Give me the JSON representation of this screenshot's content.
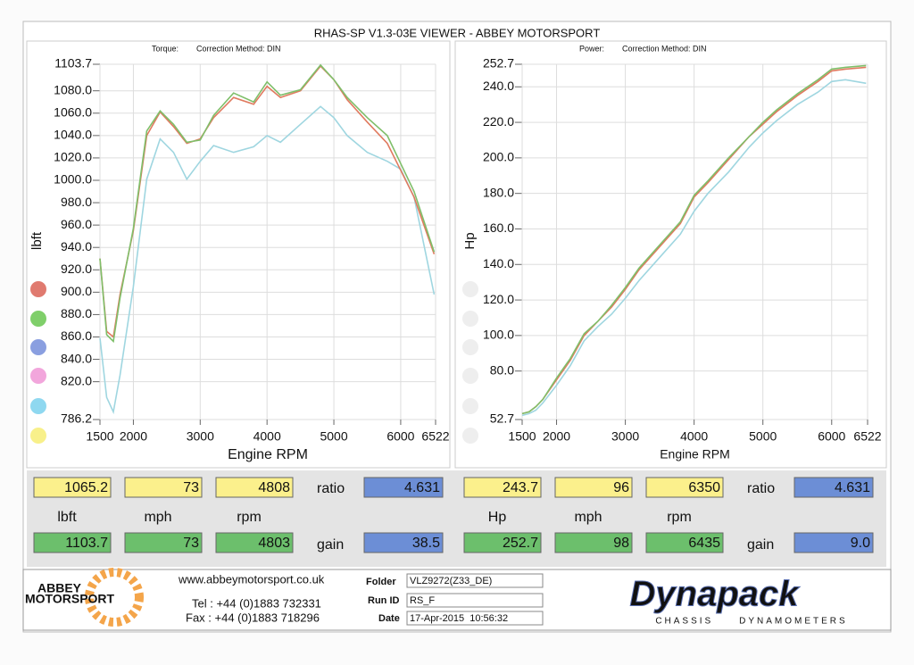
{
  "header": {
    "title": "RHAS-SP V1.3-03E VIEWER - ABBEY MOTORSPORT"
  },
  "chart_data": [
    {
      "type": "line",
      "subtitle": "Torque:",
      "method": "Correction Method: DIN",
      "xlabel": "Engine RPM",
      "ylabel": "lbft",
      "xlim": [
        1500,
        6522
      ],
      "xticks": [
        1500,
        2000,
        3000,
        4000,
        5000,
        6000,
        6522
      ],
      "ylim": [
        786.2,
        1103.7
      ],
      "yticks": [
        786.2,
        {
          "value": 820,
          "label": "820.0"
        },
        {
          "value": 840,
          "label": "840.0"
        },
        {
          "value": 860,
          "label": "860.0"
        },
        {
          "value": 880,
          "label": "880.0"
        },
        {
          "value": 900,
          "label": "900.0"
        },
        {
          "value": 920,
          "label": "920.0"
        },
        {
          "value": 940,
          "label": "940.0"
        },
        {
          "value": 960,
          "label": "960.0"
        },
        {
          "value": 980,
          "label": "980.0"
        },
        {
          "value": 1000,
          "label": "1000.0"
        },
        {
          "value": 1020,
          "label": "1020.0"
        },
        {
          "value": 1040,
          "label": "1040.0"
        },
        {
          "value": 1060,
          "label": "1060.0"
        },
        {
          "value": 1080,
          "label": "1080.0"
        },
        1103.7
      ],
      "grid": true,
      "x": [
        1500,
        1600,
        1700,
        1800,
        2000,
        2200,
        2400,
        2600,
        2800,
        3000,
        3200,
        3500,
        3800,
        4000,
        4200,
        4500,
        4800,
        5000,
        5200,
        5500,
        5800,
        6000,
        6200,
        6500
      ],
      "series": [
        {
          "color": "#9fd6e0",
          "values": [
            859,
            806,
            793,
            826,
            905,
            1001,
            1037,
            1025,
            1001,
            1017,
            1031,
            1025,
            1030,
            1040,
            1034,
            1050,
            1066,
            1056,
            1040,
            1025,
            1017,
            1010,
            985,
            898
          ]
        },
        {
          "color": "#e07a5f",
          "values": [
            930,
            865,
            860,
            898,
            955,
            1040,
            1061,
            1048,
            1033,
            1037,
            1056,
            1074,
            1068,
            1084,
            1074,
            1080,
            1102,
            1090,
            1072,
            1052,
            1033,
            1009,
            985,
            934
          ]
        },
        {
          "color": "#7fbf6a",
          "values": [
            930,
            862,
            856,
            895,
            957,
            1044,
            1062,
            1050,
            1034,
            1036,
            1058,
            1078,
            1070,
            1088,
            1076,
            1081,
            1103,
            1090,
            1074,
            1056,
            1040,
            1015,
            990,
            936
          ]
        }
      ]
    },
    {
      "type": "line",
      "subtitle": "Power:",
      "method": "Correction Method: DIN",
      "xlabel": "Engine RPM",
      "ylabel": "Hp",
      "xlim": [
        1500,
        6522
      ],
      "xticks": [
        1500,
        2000,
        3000,
        4000,
        5000,
        6000,
        6522
      ],
      "ylim": [
        52.7,
        252.7
      ],
      "yticks": [
        52.7,
        {
          "value": 80,
          "label": "80.0"
        },
        {
          "value": 100,
          "label": "100.0"
        },
        {
          "value": 120,
          "label": "120.0"
        },
        {
          "value": 140,
          "label": "140.0"
        },
        {
          "value": 160,
          "label": "160.0"
        },
        {
          "value": 180,
          "label": "180.0"
        },
        {
          "value": 200,
          "label": "200.0"
        },
        {
          "value": 220,
          "label": "220.0"
        },
        {
          "value": 240,
          "label": "240.0"
        },
        252.7
      ],
      "grid": true,
      "x": [
        1500,
        1600,
        1700,
        1800,
        2000,
        2200,
        2400,
        2600,
        2800,
        3000,
        3200,
        3500,
        3800,
        4000,
        4200,
        4500,
        4800,
        5000,
        5200,
        5500,
        5800,
        6000,
        6200,
        6500
      ],
      "series": [
        {
          "color": "#9fd6e0",
          "values": [
            55,
            56,
            58,
            62,
            72,
            83,
            97,
            105,
            112,
            121,
            131,
            144,
            157,
            170,
            180,
            192,
            206,
            214,
            221,
            230,
            237,
            243,
            244,
            242
          ]
        },
        {
          "color": "#e07a5f",
          "values": [
            56,
            57,
            60,
            64,
            75,
            86,
            100,
            108,
            116,
            126,
            137,
            150,
            163,
            178,
            186,
            199,
            212,
            219,
            226,
            235,
            243,
            249,
            250,
            251
          ]
        },
        {
          "color": "#7fbf6a",
          "values": [
            56,
            57,
            60,
            64,
            76,
            87,
            101,
            108,
            117,
            127,
            138,
            151,
            164,
            179,
            187,
            200,
            212,
            220,
            227,
            236,
            244,
            250,
            251,
            252
          ]
        }
      ]
    }
  ],
  "readouts": [
    {
      "row1": [
        "1065.2",
        "73",
        "4808"
      ],
      "ratio_label": "ratio",
      "ratio": "4.631",
      "labels": [
        "lbft",
        "mph",
        "rpm"
      ],
      "row2": [
        "1103.7",
        "73",
        "4803"
      ],
      "gain_label": "gain",
      "gain": "38.5"
    },
    {
      "row1": [
        "243.7",
        "96",
        "6350"
      ],
      "ratio_label": "ratio",
      "ratio": "4.631",
      "labels": [
        "Hp",
        "mph",
        "rpm"
      ],
      "row2": [
        "252.7",
        "98",
        "6435"
      ],
      "gain_label": "gain",
      "gain": "9.0"
    }
  ],
  "footer": {
    "logo_top": "ABBEY",
    "logo_bottom": "MOTORSPORT",
    "website": "www.abbeymotorsport.co.uk",
    "tel": "Tel : +44 (0)1883 732331",
    "fax": "Fax : +44 (0)1883 718296",
    "folder_label": "Folder",
    "folder": "VLZ9272(Z33_DE)",
    "run_label": "Run ID",
    "run": "RS_F",
    "date_label": "Date",
    "date": "17-Apr-2015  10:56:32",
    "brand": "Dynapack",
    "brand_sub": "CHASSIS     DYNAMOMETERS"
  }
}
